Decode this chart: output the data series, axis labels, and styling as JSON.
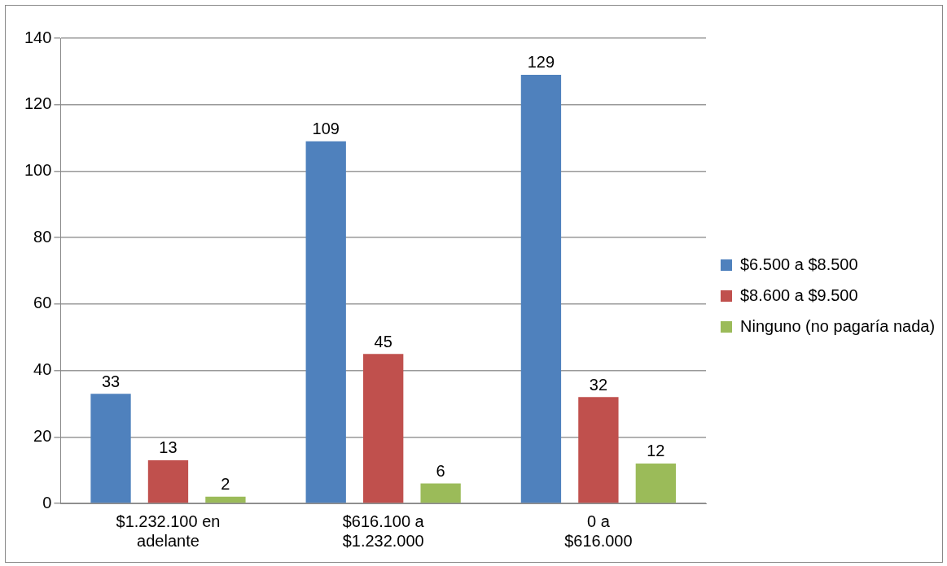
{
  "chart_data": {
    "type": "bar",
    "categories": [
      "$1.232.100 en adelante",
      "$616.100 a $1.232.000",
      "0 a $616.000"
    ],
    "series": [
      {
        "name": "$6.500 a $8.500",
        "color": "#4f81bd",
        "values": [
          33,
          109,
          129
        ]
      },
      {
        "name": "$8.600 a $9.500",
        "color": "#c0504d",
        "values": [
          13,
          45,
          32
        ]
      },
      {
        "name": "Ninguno (no pagaría nada)",
        "color": "#9bbb59",
        "values": [
          2,
          6,
          12
        ]
      }
    ],
    "ylim": [
      0,
      140
    ],
    "yticks": [
      0,
      20,
      40,
      60,
      80,
      100,
      120,
      140
    ],
    "grid": "y",
    "legend": "right",
    "data_labels": true
  }
}
